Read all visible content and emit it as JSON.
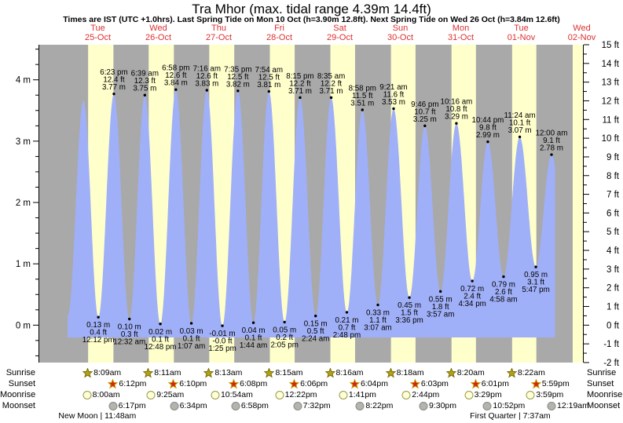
{
  "title": "Tra Mhor (max. tidal range 4.39m 14.4ft)",
  "subtitle": "Times are IST (UTC +1.0hrs). Last Spring Tide on Mon 10 Oct (h=3.90m 12.8ft). Next Spring Tide on Wed 26 Oct (h=3.84m 12.6ft)",
  "colors": {
    "night_band": "#a9a9a9",
    "day_band": "#ffffcc",
    "tide_fill": "#a0b0f8",
    "date_text": "#dd2f2f",
    "text": "#000000",
    "sunrise_star": "#b3a312",
    "sunrise_star_edge": "#7a6d08",
    "sunset_star": "#d62310",
    "sunset_star_edge": "#c9a00a",
    "moonrise_circle": "#ffffd8",
    "moonrise_circle_edge": "#99994d",
    "moonset_circle": "#b4b4ac",
    "moonset_circle_edge": "#888888"
  },
  "legend": {
    "sunrise": "Sunrise",
    "sunset": "Sunset",
    "moonrise": "Moonrise",
    "moonset": "Moonset"
  },
  "days": [
    {
      "name": "Tue",
      "date": "25-Oct",
      "sunrise": "8:09am",
      "sunset": "6:12pm",
      "moonrise": "8:00am",
      "moonset": "6:17pm"
    },
    {
      "name": "Wed",
      "date": "26-Oct",
      "sunrise": "8:11am",
      "sunset": "6:10pm",
      "moonrise": "9:25am",
      "moonset": "6:34pm"
    },
    {
      "name": "Thu",
      "date": "27-Oct",
      "sunrise": "8:13am",
      "sunset": "6:08pm",
      "moonrise": "10:54am",
      "moonset": "6:58pm"
    },
    {
      "name": "Fri",
      "date": "28-Oct",
      "sunrise": "8:15am",
      "sunset": "6:06pm",
      "moonrise": "12:22pm",
      "moonset": "7:32pm"
    },
    {
      "name": "Sat",
      "date": "29-Oct",
      "sunrise": "8:16am",
      "sunset": "6:04pm",
      "moonrise": "1:41pm",
      "moonset": "8:22pm"
    },
    {
      "name": "Sun",
      "date": "30-Oct",
      "sunrise": "8:18am",
      "sunset": "6:03pm",
      "moonrise": "2:44pm",
      "moonset": "9:30pm"
    },
    {
      "name": "Mon",
      "date": "31-Oct",
      "sunrise": "8:20am",
      "sunset": "6:01pm",
      "moonrise": "3:29pm",
      "moonset": "10:52pm"
    },
    {
      "name": "Tue",
      "date": "01-Nov",
      "sunrise": "8:22am",
      "sunset": "5:59pm",
      "moonrise": "3:59pm"
    },
    {
      "name": "Wed",
      "date": "02-Nov",
      "moonset": "12:19am"
    }
  ],
  "moon_phases": [
    {
      "label": "New Moon | 11:48am",
      "day": 0,
      "time": "11:48am"
    },
    {
      "label": "First Quarter | 7:37am",
      "day": 7,
      "time": "7:37am"
    }
  ],
  "chart_data": {
    "type": "area",
    "title": "Tide height over time",
    "ylim_m": [
      -0.61,
      4.572
    ],
    "ylim_ft": [
      -2,
      15
    ],
    "grid": false,
    "y_axis_left": {
      "unit": "m",
      "values": [
        4,
        3,
        2,
        1,
        0
      ],
      "labels": [
        "4 m",
        "3 m",
        "2 m",
        "1 m",
        "0 m"
      ]
    },
    "y_axis_right": {
      "unit": "ft",
      "values": [
        15,
        14,
        13,
        12,
        11,
        10,
        9,
        8,
        7,
        6,
        5,
        4,
        3,
        2,
        1,
        0,
        -1,
        -2
      ],
      "labels": [
        "15 ft",
        "14 ft",
        "13 ft",
        "12 ft",
        "11 ft",
        "10 ft",
        "9 ft",
        "8 ft",
        "7 ft",
        "6 ft",
        "5 ft",
        "4 ft",
        "3 ft",
        "2 ft",
        "1 ft",
        "0 ft",
        "-1 ft",
        "-2 ft"
      ]
    },
    "events": [
      {
        "type": "L",
        "day": 0,
        "time": "12:05 am",
        "h": 0.15,
        "labeled": false
      },
      {
        "type": "H",
        "day": 0,
        "time": "6:18 am",
        "h": 3.66,
        "labeled": false
      },
      {
        "type": "L",
        "day": 0,
        "time": "12:12 pm",
        "h": 0.13,
        "m": "0.13 m",
        "ft": "0.4 ft"
      },
      {
        "type": "H",
        "day": 0,
        "time": "6:23 pm",
        "h": 3.77,
        "m": "3.77 m",
        "ft": "12.4 ft"
      },
      {
        "type": "L",
        "day": 1,
        "time": "12:32 am",
        "h": 0.1,
        "m": "0.10 m",
        "ft": "0.3 ft"
      },
      {
        "type": "H",
        "day": 1,
        "time": "6:39 am",
        "h": 3.75,
        "m": "3.75 m",
        "ft": "12.3 ft"
      },
      {
        "type": "L",
        "day": 1,
        "time": "12:48 pm",
        "h": 0.02,
        "m": "0.02 m",
        "ft": "0.1 ft"
      },
      {
        "type": "H",
        "day": 1,
        "time": "6:58 pm",
        "h": 3.84,
        "m": "3.84 m",
        "ft": "12.6 ft"
      },
      {
        "type": "L",
        "day": 2,
        "time": "1:07 am",
        "h": 0.03,
        "m": "0.03 m",
        "ft": "0.1 ft"
      },
      {
        "type": "H",
        "day": 2,
        "time": "7:16 am",
        "h": 3.83,
        "m": "3.83 m",
        "ft": "12.6 ft"
      },
      {
        "type": "L",
        "day": 2,
        "time": "1:25 pm",
        "h": -0.01,
        "m": "-0.01 m",
        "ft": "-0.0 ft"
      },
      {
        "type": "H",
        "day": 2,
        "time": "7:35 pm",
        "h": 3.82,
        "m": "3.82 m",
        "ft": "12.5 ft"
      },
      {
        "type": "L",
        "day": 3,
        "time": "1:44 am",
        "h": 0.04,
        "m": "0.04 m",
        "ft": "0.1 ft"
      },
      {
        "type": "H",
        "day": 3,
        "time": "7:54 am",
        "h": 3.81,
        "m": "3.81 m",
        "ft": "12.5 ft"
      },
      {
        "type": "L",
        "day": 3,
        "time": "2:05 pm",
        "h": 0.05,
        "m": "0.05 m",
        "ft": "0.2 ft"
      },
      {
        "type": "H",
        "day": 3,
        "time": "8:15 pm",
        "h": 3.71,
        "m": "3.71 m",
        "ft": "12.2 ft"
      },
      {
        "type": "L",
        "day": 4,
        "time": "2:24 am",
        "h": 0.15,
        "m": "0.15 m",
        "ft": "0.5 ft"
      },
      {
        "type": "H",
        "day": 4,
        "time": "8:35 am",
        "h": 3.71,
        "m": "3.71 m",
        "ft": "12.2 ft"
      },
      {
        "type": "L",
        "day": 4,
        "time": "2:48 pm",
        "h": 0.21,
        "m": "0.21 m",
        "ft": "0.7 ft"
      },
      {
        "type": "H",
        "day": 4,
        "time": "8:58 pm",
        "h": 3.51,
        "m": "3.51 m",
        "ft": "11.5 ft"
      },
      {
        "type": "L",
        "day": 5,
        "time": "3:07 am",
        "h": 0.33,
        "m": "0.33 m",
        "ft": "1.1 ft"
      },
      {
        "type": "H",
        "day": 5,
        "time": "9:21 am",
        "h": 3.53,
        "m": "3.53 m",
        "ft": "11.6 ft"
      },
      {
        "type": "L",
        "day": 5,
        "time": "3:36 pm",
        "h": 0.45,
        "m": "0.45 m",
        "ft": "1.5 ft"
      },
      {
        "type": "H",
        "day": 5,
        "time": "9:46 pm",
        "h": 3.25,
        "m": "3.25 m",
        "ft": "10.7 ft"
      },
      {
        "type": "L",
        "day": 6,
        "time": "3:57 am",
        "h": 0.55,
        "m": "0.55 m",
        "ft": "1.8 ft"
      },
      {
        "type": "H",
        "day": 6,
        "time": "10:16 am",
        "h": 3.29,
        "m": "3.29 m",
        "ft": "10.8 ft"
      },
      {
        "type": "L",
        "day": 6,
        "time": "4:34 pm",
        "h": 0.72,
        "m": "0.72 m",
        "ft": "2.4 ft"
      },
      {
        "type": "H",
        "day": 6,
        "time": "10:44 pm",
        "h": 2.99,
        "m": "2.99 m",
        "ft": "9.8 ft"
      },
      {
        "type": "L",
        "day": 7,
        "time": "4:58 am",
        "h": 0.79,
        "m": "0.79 m",
        "ft": "2.6 ft"
      },
      {
        "type": "H",
        "day": 7,
        "time": "11:24 am",
        "h": 3.07,
        "m": "3.07 m",
        "ft": "10.1 ft"
      },
      {
        "type": "L",
        "day": 7,
        "time": "5:47 pm",
        "h": 0.95,
        "m": "0.95 m",
        "ft": "3.1 ft"
      },
      {
        "type": "H",
        "day": 8,
        "time": "12:00 am",
        "h": 2.78,
        "m": "2.78 m",
        "ft": "9.1 ft"
      }
    ]
  }
}
